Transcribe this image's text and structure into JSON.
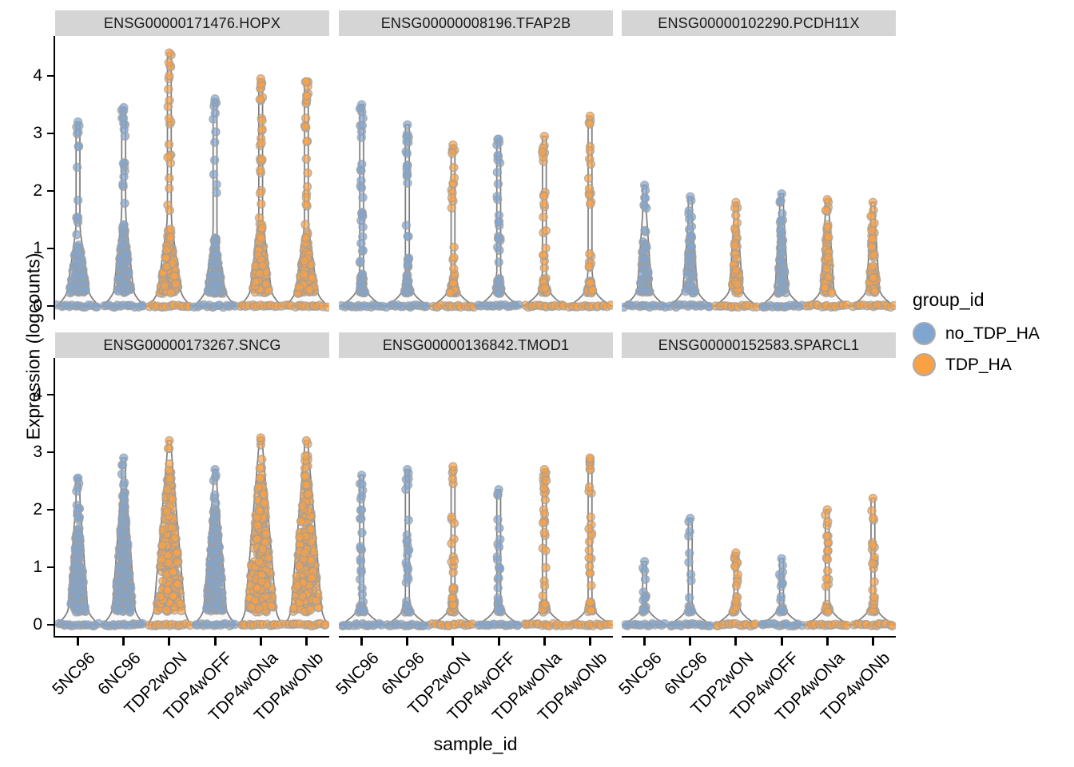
{
  "figure": {
    "x_axis_title": "sample_id",
    "y_axis_title": "Expression (logcounts)",
    "background": "#FFFFFF",
    "strip_background": "#D5D5D5"
  },
  "legend": {
    "title": "group_id",
    "items": [
      {
        "label": "no_TDP_HA",
        "color": "#7FA5D1"
      },
      {
        "label": "TDP_HA",
        "color": "#F9A145"
      }
    ]
  },
  "chart_data": {
    "type": "violin",
    "subtype": "violin-with-jittered-points",
    "xlabel": "sample_id",
    "ylabel": "Expression (logcounts)",
    "y_ticks": [
      0,
      1,
      2,
      3,
      4
    ],
    "y_range": [
      -0.2,
      4.7
    ],
    "grid": false,
    "legend_position": "right",
    "samples": [
      "5NC96",
      "6NC96",
      "TDP2wON",
      "TDP4wOFF",
      "TDP4wONa",
      "TDP4wONb"
    ],
    "sample_groups": {
      "5NC96": "no_TDP_HA",
      "6NC96": "no_TDP_HA",
      "TDP2wON": "TDP_HA",
      "TDP4wOFF": "no_TDP_HA",
      "TDP4wONa": "TDP_HA",
      "TDP4wONb": "TDP_HA"
    },
    "groups": [
      {
        "name": "no_TDP_HA",
        "color": "#7FA5D1"
      },
      {
        "name": "TDP_HA",
        "color": "#F9A145"
      }
    ],
    "facets": [
      {
        "gene": "ENSG00000171476.HOPX",
        "violins": [
          {
            "sample": "5NC96",
            "group": "no_TDP_HA",
            "max": 3.2,
            "dense_top": 1.35,
            "w": 13,
            "n_body": 110,
            "n_stem": 10,
            "top_cluster": 2
          },
          {
            "sample": "6NC96",
            "group": "no_TDP_HA",
            "max": 3.45,
            "dense_top": 1.6,
            "w": 12,
            "n_body": 110,
            "n_stem": 12,
            "top_cluster": 4
          },
          {
            "sample": "TDP2wON",
            "group": "TDP_HA",
            "max": 4.4,
            "dense_top": 1.5,
            "w": 14,
            "n_body": 150,
            "n_stem": 16,
            "top_cluster": 5
          },
          {
            "sample": "TDP4wOFF",
            "group": "no_TDP_HA",
            "max": 3.6,
            "dense_top": 1.25,
            "w": 12,
            "n_body": 110,
            "n_stem": 8,
            "top_cluster": 3
          },
          {
            "sample": "TDP4wONa",
            "group": "TDP_HA",
            "max": 3.95,
            "dense_top": 1.5,
            "w": 13,
            "n_body": 140,
            "n_stem": 18,
            "top_cluster": 7
          },
          {
            "sample": "TDP4wONb",
            "group": "TDP_HA",
            "max": 3.9,
            "dense_top": 1.4,
            "w": 13,
            "n_body": 140,
            "n_stem": 16,
            "top_cluster": 7
          }
        ]
      },
      {
        "gene": "ENSG00000008196.TFAP2B",
        "violins": [
          {
            "sample": "5NC96",
            "group": "no_TDP_HA",
            "max": 3.5,
            "dense_top": 0.55,
            "w": 6,
            "n_body": 35,
            "n_stem": 26,
            "top_cluster": 2
          },
          {
            "sample": "6NC96",
            "group": "no_TDP_HA",
            "max": 3.15,
            "dense_top": 0.55,
            "w": 6,
            "n_body": 30,
            "n_stem": 22,
            "top_cluster": 2
          },
          {
            "sample": "TDP2wON",
            "group": "TDP_HA",
            "max": 2.8,
            "dense_top": 0.55,
            "w": 6,
            "n_body": 30,
            "n_stem": 16,
            "top_cluster": 2
          },
          {
            "sample": "TDP4wOFF",
            "group": "no_TDP_HA",
            "max": 2.9,
            "dense_top": 0.55,
            "w": 6,
            "n_body": 30,
            "n_stem": 20,
            "top_cluster": 3
          },
          {
            "sample": "TDP4wONa",
            "group": "TDP_HA",
            "max": 2.95,
            "dense_top": 0.55,
            "w": 6,
            "n_body": 30,
            "n_stem": 18,
            "top_cluster": 2
          },
          {
            "sample": "TDP4wONb",
            "group": "TDP_HA",
            "max": 3.3,
            "dense_top": 0.55,
            "w": 6,
            "n_body": 30,
            "n_stem": 18,
            "top_cluster": 2
          }
        ]
      },
      {
        "gene": "ENSG00000102290.PCDH11X",
        "violins": [
          {
            "sample": "5NC96",
            "group": "no_TDP_HA",
            "max": 2.1,
            "dense_top": 1.6,
            "w": 9,
            "n_body": 70,
            "n_stem": 4,
            "top_cluster": 2
          },
          {
            "sample": "6NC96",
            "group": "no_TDP_HA",
            "max": 1.9,
            "dense_top": 1.5,
            "w": 9,
            "n_body": 65,
            "n_stem": 3,
            "top_cluster": 2
          },
          {
            "sample": "TDP2wON",
            "group": "TDP_HA",
            "max": 1.8,
            "dense_top": 1.5,
            "w": 8,
            "n_body": 60,
            "n_stem": 2,
            "top_cluster": 2
          },
          {
            "sample": "TDP4wOFF",
            "group": "no_TDP_HA",
            "max": 1.95,
            "dense_top": 1.7,
            "w": 8,
            "n_body": 65,
            "n_stem": 2,
            "top_cluster": 2
          },
          {
            "sample": "TDP4wONa",
            "group": "TDP_HA",
            "max": 1.85,
            "dense_top": 1.6,
            "w": 8,
            "n_body": 60,
            "n_stem": 2,
            "top_cluster": 2
          },
          {
            "sample": "TDP4wONb",
            "group": "TDP_HA",
            "max": 1.8,
            "dense_top": 1.55,
            "w": 8,
            "n_body": 60,
            "n_stem": 2,
            "top_cluster": 2
          }
        ]
      },
      {
        "gene": "ENSG00000173267.SNCG",
        "violins": [
          {
            "sample": "5NC96",
            "group": "no_TDP_HA",
            "max": 2.55,
            "dense_top": 2.2,
            "w": 12,
            "n_body": 170,
            "n_stem": 3,
            "top_cluster": 1
          },
          {
            "sample": "6NC96",
            "group": "no_TDP_HA",
            "max": 2.9,
            "dense_top": 2.5,
            "w": 14,
            "n_body": 210,
            "n_stem": 2,
            "top_cluster": 1
          },
          {
            "sample": "TDP2wON",
            "group": "TDP_HA",
            "max": 3.2,
            "dense_top": 3.05,
            "w": 19,
            "n_body": 260,
            "n_stem": 1,
            "top_cluster": 1
          },
          {
            "sample": "TDP4wOFF",
            "group": "no_TDP_HA",
            "max": 2.7,
            "dense_top": 2.4,
            "w": 14,
            "n_body": 210,
            "n_stem": 2,
            "top_cluster": 1
          },
          {
            "sample": "TDP4wONa",
            "group": "TDP_HA",
            "max": 3.25,
            "dense_top": 3.1,
            "w": 19,
            "n_body": 260,
            "n_stem": 1,
            "top_cluster": 1
          },
          {
            "sample": "TDP4wONb",
            "group": "TDP_HA",
            "max": 3.2,
            "dense_top": 3.05,
            "w": 19,
            "n_body": 260,
            "n_stem": 1,
            "top_cluster": 1
          }
        ]
      },
      {
        "gene": "ENSG00000136842.TMOD1",
        "violins": [
          {
            "sample": "5NC96",
            "group": "no_TDP_HA",
            "max": 2.6,
            "dense_top": 0.45,
            "w": 5,
            "n_body": 16,
            "n_stem": 18,
            "top_cluster": 2
          },
          {
            "sample": "6NC96",
            "group": "no_TDP_HA",
            "max": 2.7,
            "dense_top": 0.45,
            "w": 5,
            "n_body": 16,
            "n_stem": 18,
            "top_cluster": 2
          },
          {
            "sample": "TDP2wON",
            "group": "TDP_HA",
            "max": 2.75,
            "dense_top": 0.45,
            "w": 5,
            "n_body": 16,
            "n_stem": 18,
            "top_cluster": 2
          },
          {
            "sample": "TDP4wOFF",
            "group": "no_TDP_HA",
            "max": 2.35,
            "dense_top": 0.45,
            "w": 5,
            "n_body": 12,
            "n_stem": 14,
            "top_cluster": 2
          },
          {
            "sample": "TDP4wONa",
            "group": "TDP_HA",
            "max": 2.7,
            "dense_top": 0.45,
            "w": 5,
            "n_body": 16,
            "n_stem": 22,
            "top_cluster": 3
          },
          {
            "sample": "TDP4wONb",
            "group": "TDP_HA",
            "max": 2.9,
            "dense_top": 0.45,
            "w": 5,
            "n_body": 16,
            "n_stem": 20,
            "top_cluster": 2
          }
        ]
      },
      {
        "gene": "ENSG00000152583.SPARCL1",
        "violins": [
          {
            "sample": "5NC96",
            "group": "no_TDP_HA",
            "max": 1.1,
            "dense_top": 0.35,
            "w": 4.5,
            "n_body": 8,
            "n_stem": 7,
            "top_cluster": 2
          },
          {
            "sample": "6NC96",
            "group": "no_TDP_HA",
            "max": 1.85,
            "dense_top": 0.35,
            "w": 4.5,
            "n_body": 8,
            "n_stem": 7,
            "top_cluster": 1
          },
          {
            "sample": "TDP2wON",
            "group": "TDP_HA",
            "max": 1.25,
            "dense_top": 0.4,
            "w": 5,
            "n_body": 10,
            "n_stem": 12,
            "top_cluster": 2
          },
          {
            "sample": "TDP4wOFF",
            "group": "no_TDP_HA",
            "max": 1.15,
            "dense_top": 0.35,
            "w": 4.5,
            "n_body": 8,
            "n_stem": 7,
            "top_cluster": 2
          },
          {
            "sample": "TDP4wONa",
            "group": "TDP_HA",
            "max": 2.0,
            "dense_top": 0.4,
            "w": 5,
            "n_body": 10,
            "n_stem": 14,
            "top_cluster": 2
          },
          {
            "sample": "TDP4wONb",
            "group": "TDP_HA",
            "max": 2.2,
            "dense_top": 0.4,
            "w": 5,
            "n_body": 10,
            "n_stem": 16,
            "top_cluster": 2
          }
        ]
      }
    ],
    "style": {
      "point_fill_blue": "#7FA5D1",
      "point_fill_orange": "#F9A145",
      "point_stroke": "#9E9E9E",
      "violin_stroke": "#7D7D7D",
      "violin_fill": "#FAFAFA"
    }
  }
}
